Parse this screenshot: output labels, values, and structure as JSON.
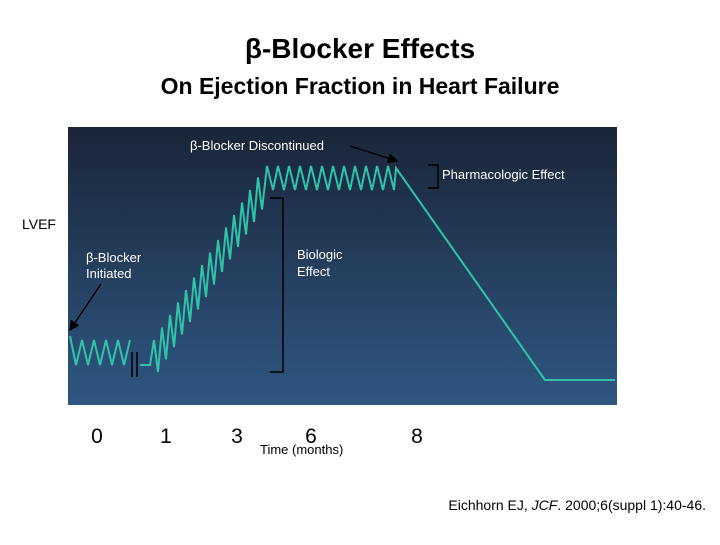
{
  "header": {
    "title": "β-Blocker Effects",
    "subtitle": "On Ejection Fraction in Heart Failure"
  },
  "diagram": {
    "y_axis_label": "LVEF",
    "discontinued_label": "β-Blocker Discontinued",
    "pharmacologic_label": "Pharmacologic Effect",
    "initiated_label": [
      "β-Blocker",
      "Initiated"
    ],
    "biologic_label": [
      "Biologic",
      "Effect"
    ],
    "x_labels": [
      "0",
      "1",
      "3",
      "6",
      "8"
    ],
    "x_axis_label": "Time (months)"
  },
  "citation": {
    "authors": "Eichhorn EJ, ",
    "journal": "JCF",
    "details": ". 2000;6(suppl 1):40-46."
  }
}
